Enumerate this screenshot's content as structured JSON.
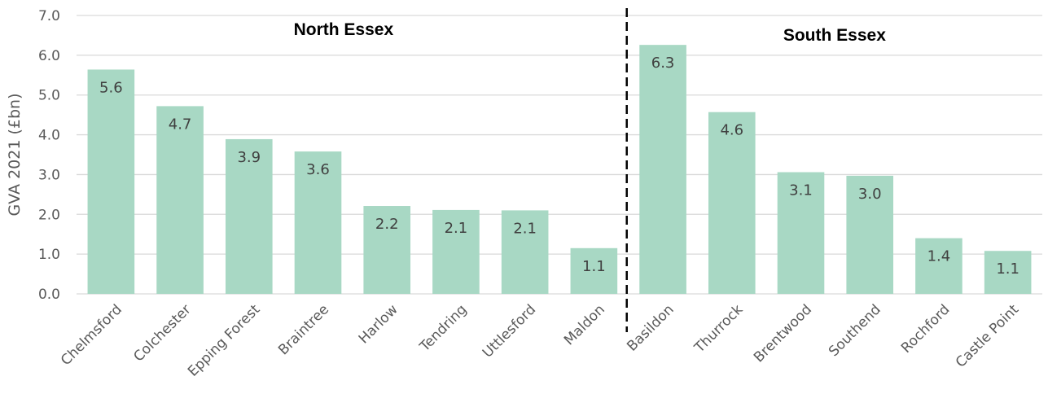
{
  "chart_data": {
    "type": "bar",
    "ylabel": "GVA 2021 (£bn)",
    "xlabel": "",
    "title": "",
    "ylim": [
      0,
      7
    ],
    "yticks": [
      "0.0",
      "1.0",
      "2.0",
      "3.0",
      "4.0",
      "5.0",
      "6.0",
      "7.0"
    ],
    "grid": true,
    "categories": [
      "Chelmsford",
      "Colchester",
      "Epping Forest",
      "Braintree",
      "Harlow",
      "Tendring",
      "Uttlesford",
      "Maldon",
      "Basildon",
      "Thurrock",
      "Brentwood",
      "Southend",
      "Rochford",
      "Castle Point"
    ],
    "values": [
      5.64,
      4.72,
      3.89,
      3.58,
      2.21,
      2.11,
      2.1,
      1.15,
      6.26,
      4.57,
      3.06,
      2.97,
      1.4,
      1.08
    ],
    "data_labels": [
      "5.6",
      "4.7",
      "3.9",
      "3.6",
      "2.2",
      "2.1",
      "2.1",
      "1.1",
      "6.3",
      "4.6",
      "3.1",
      "3.0",
      "1.4",
      "1.1"
    ],
    "groups": [
      {
        "label": "North Essex",
        "categories": [
          "Chelmsford",
          "Colchester",
          "Epping Forest",
          "Braintree",
          "Harlow",
          "Tendring",
          "Uttlesford",
          "Maldon"
        ]
      },
      {
        "label": "South Essex",
        "categories": [
          "Basildon",
          "Thurrock",
          "Brentwood",
          "Southend",
          "Rochford",
          "Castle Point"
        ]
      }
    ],
    "divider_after_index": 7,
    "colors": {
      "bar": "#a8d8c4",
      "grid": "#d9d9d9",
      "divider": "#000000"
    }
  }
}
